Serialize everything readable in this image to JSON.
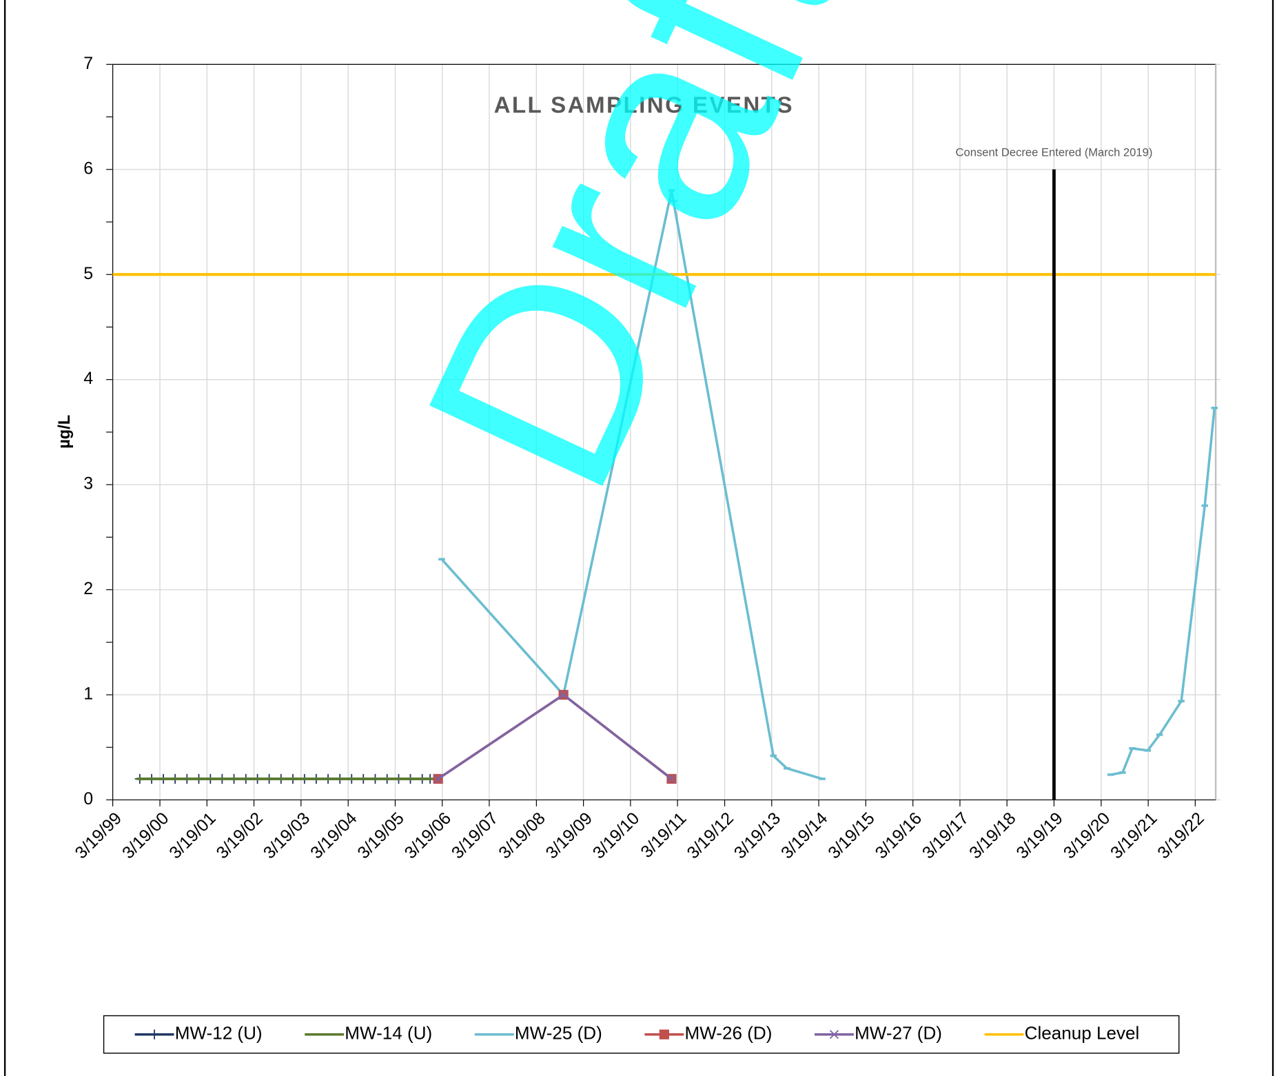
{
  "chart_data": {
    "type": "line",
    "title": "ALL SAMPLING EVENTS",
    "ylabel": "µg/L",
    "watermark": "Draft",
    "annotation": {
      "text": "Consent Decree Entered (March 2019)",
      "x": "2019-03-19",
      "y": [
        0,
        6
      ]
    },
    "xlim": [
      "1999-03-19",
      "2022-08-25"
    ],
    "xticks": [
      {
        "value": "1999-03-19",
        "label": "3/19/99"
      },
      {
        "value": "2000-03-19",
        "label": "3/19/00"
      },
      {
        "value": "2001-03-19",
        "label": "3/19/01"
      },
      {
        "value": "2002-03-19",
        "label": "3/19/02"
      },
      {
        "value": "2003-03-19",
        "label": "3/19/03"
      },
      {
        "value": "2004-03-19",
        "label": "3/19/04"
      },
      {
        "value": "2005-03-19",
        "label": "3/19/05"
      },
      {
        "value": "2006-03-19",
        "label": "3/19/06"
      },
      {
        "value": "2007-03-19",
        "label": "3/19/07"
      },
      {
        "value": "2008-03-19",
        "label": "3/19/08"
      },
      {
        "value": "2009-03-19",
        "label": "3/19/09"
      },
      {
        "value": "2010-03-19",
        "label": "3/19/10"
      },
      {
        "value": "2011-03-19",
        "label": "3/19/11"
      },
      {
        "value": "2012-03-19",
        "label": "3/19/12"
      },
      {
        "value": "2013-03-19",
        "label": "3/19/13"
      },
      {
        "value": "2014-03-19",
        "label": "3/19/14"
      },
      {
        "value": "2015-03-19",
        "label": "3/19/15"
      },
      {
        "value": "2016-03-19",
        "label": "3/19/16"
      },
      {
        "value": "2017-03-19",
        "label": "3/19/17"
      },
      {
        "value": "2018-03-19",
        "label": "3/19/18"
      },
      {
        "value": "2019-03-19",
        "label": "3/19/19"
      },
      {
        "value": "2020-03-19",
        "label": "3/19/20"
      },
      {
        "value": "2021-03-19",
        "label": "3/19/21"
      },
      {
        "value": "2022-03-19",
        "label": "3/19/22"
      }
    ],
    "ylim": [
      0,
      7
    ],
    "yticks": [
      0,
      1,
      2,
      3,
      4,
      5,
      6,
      7
    ],
    "grid": true,
    "series": [
      {
        "name": "MW-12 (U)",
        "color": "#1f3864",
        "marker": "plus",
        "x": [
          "1999-10-15",
          "2000-01-15",
          "2000-04-15",
          "2000-07-15",
          "2000-10-15",
          "2001-01-15",
          "2001-04-15",
          "2001-07-15",
          "2001-10-15",
          "2002-01-15",
          "2002-04-15",
          "2002-07-15",
          "2002-10-15",
          "2003-01-15",
          "2003-04-15",
          "2003-07-15",
          "2003-10-15",
          "2004-01-15",
          "2004-04-15",
          "2004-07-15",
          "2004-10-15",
          "2005-01-15",
          "2005-04-15",
          "2005-07-15",
          "2005-10-15",
          "2005-12-15"
        ],
        "values": [
          0.2,
          0.2,
          0.2,
          0.2,
          0.2,
          0.2,
          0.2,
          0.2,
          0.2,
          0.2,
          0.2,
          0.2,
          0.2,
          0.2,
          0.2,
          0.2,
          0.2,
          0.2,
          0.2,
          0.2,
          0.2,
          0.2,
          0.2,
          0.2,
          0.2,
          0.2
        ]
      },
      {
        "name": "MW-14 (U)",
        "color": "#5a7a2c",
        "marker": "dash",
        "x": [
          "1999-10-15",
          "2000-01-15",
          "2000-04-15",
          "2000-07-15",
          "2000-10-15",
          "2001-01-15",
          "2001-04-15",
          "2001-07-15",
          "2001-10-15",
          "2002-01-15",
          "2002-04-15",
          "2002-07-15",
          "2002-10-15",
          "2003-01-15",
          "2003-04-15",
          "2003-07-15",
          "2003-10-15",
          "2004-01-15",
          "2004-04-15",
          "2004-07-15",
          "2004-10-15",
          "2005-01-15",
          "2005-04-15",
          "2005-07-15",
          "2005-10-15",
          "2006-02-15"
        ],
        "values": [
          0.2,
          0.2,
          0.2,
          0.2,
          0.2,
          0.2,
          0.2,
          0.2,
          0.2,
          0.2,
          0.2,
          0.2,
          0.2,
          0.2,
          0.2,
          0.2,
          0.2,
          0.2,
          0.2,
          0.2,
          0.2,
          0.2,
          0.2,
          0.2,
          0.2,
          0.2
        ]
      },
      {
        "name": "MW-25 (D)",
        "color": "#6bbdd0",
        "marker": "dash",
        "x": [
          "2006-03-15",
          "2008-10-15",
          "2011-02-01",
          "2011-02-15",
          "2013-04-01",
          "2013-07-15",
          "2014-04-15",
          null,
          "2020-06-01",
          "2020-09-01",
          "2020-11-15",
          "2021-03-15",
          "2021-06-15",
          "2021-12-01",
          "2022-06-01",
          "2022-08-15"
        ],
        "values": [
          2.29,
          1.0,
          5.8,
          5.7,
          0.42,
          0.3,
          0.2,
          null,
          0.24,
          0.26,
          0.49,
          0.47,
          0.62,
          0.94,
          2.8,
          3.73
        ]
      },
      {
        "name": "MW-26 (D)",
        "color": "#c0504d",
        "marker": "square",
        "x": [
          "2006-02-15",
          "2008-10-15",
          "2011-02-01"
        ],
        "values": [
          0.2,
          1.0,
          0.2
        ]
      },
      {
        "name": "MW-27 (D)",
        "color": "#8064a2",
        "marker": "x",
        "x": [
          "2006-02-15",
          "2008-10-15",
          "2011-02-01"
        ],
        "values": [
          0.2,
          1.0,
          0.2
        ]
      },
      {
        "name": "Cleanup Level",
        "color": "#ffc000",
        "marker": "none",
        "x": [
          "1999-03-19",
          "2022-08-25"
        ],
        "values": [
          5,
          5
        ]
      }
    ]
  }
}
